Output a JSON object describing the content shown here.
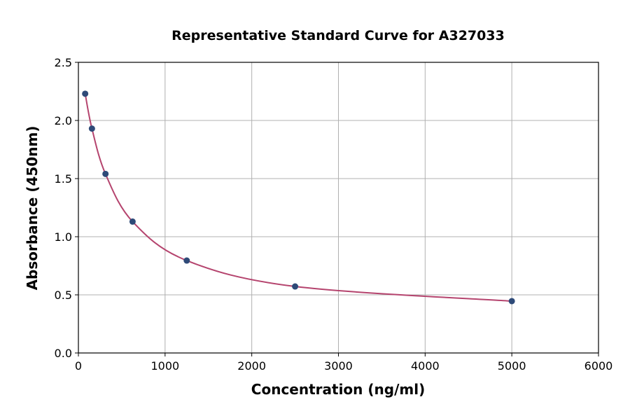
{
  "chart_data": {
    "type": "scatter",
    "title": "Representative Standard Curve for A327033",
    "xlabel": "Concentration (ng/ml)",
    "ylabel": "Absorbance (450nm)",
    "xlim": [
      0,
      6000
    ],
    "ylim": [
      0,
      2.5
    ],
    "xticks": [
      "0",
      "1000",
      "2000",
      "3000",
      "4000",
      "5000",
      "6000"
    ],
    "yticks": [
      "0.0",
      "0.5",
      "1.0",
      "1.5",
      "2.0",
      "2.5"
    ],
    "grid": true,
    "points": [
      {
        "x": 78.125,
        "y": 2.23
      },
      {
        "x": 156.25,
        "y": 1.93
      },
      {
        "x": 312.5,
        "y": 1.54
      },
      {
        "x": 625,
        "y": 1.13
      },
      {
        "x": 1250,
        "y": 0.795
      },
      {
        "x": 2500,
        "y": 0.572
      },
      {
        "x": 5000,
        "y": 0.446
      }
    ],
    "fit_curve": true,
    "colors": {
      "point": "#2e4a78",
      "curve": "#b5446e"
    }
  }
}
